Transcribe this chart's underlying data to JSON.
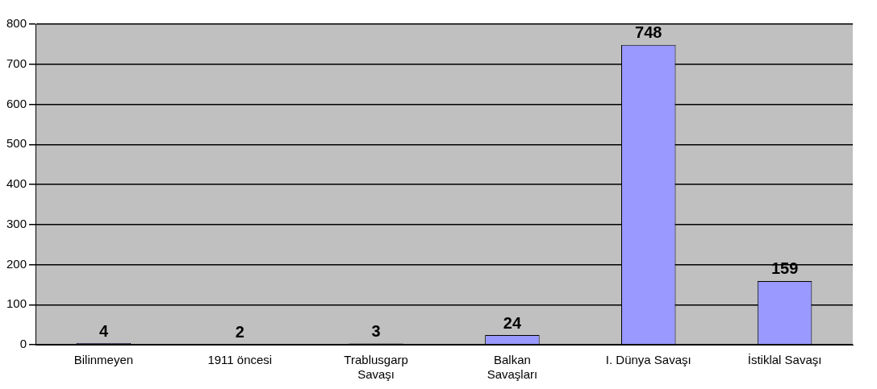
{
  "chart_data": {
    "type": "bar",
    "categories": [
      "Bilinmeyen",
      "1911 öncesi",
      "Trablusgarp\nSavaşı",
      "Balkan\nSavaşları",
      "I. Dünya Savaşı",
      "İstiklal Savaşı"
    ],
    "values": [
      4,
      2,
      3,
      24,
      748,
      159
    ],
    "color": "#9999ff",
    "ylim": [
      0,
      800
    ],
    "yticks": [
      0,
      100,
      200,
      300,
      400,
      500,
      600,
      700,
      800
    ],
    "grid": "y",
    "data_labels": true
  }
}
